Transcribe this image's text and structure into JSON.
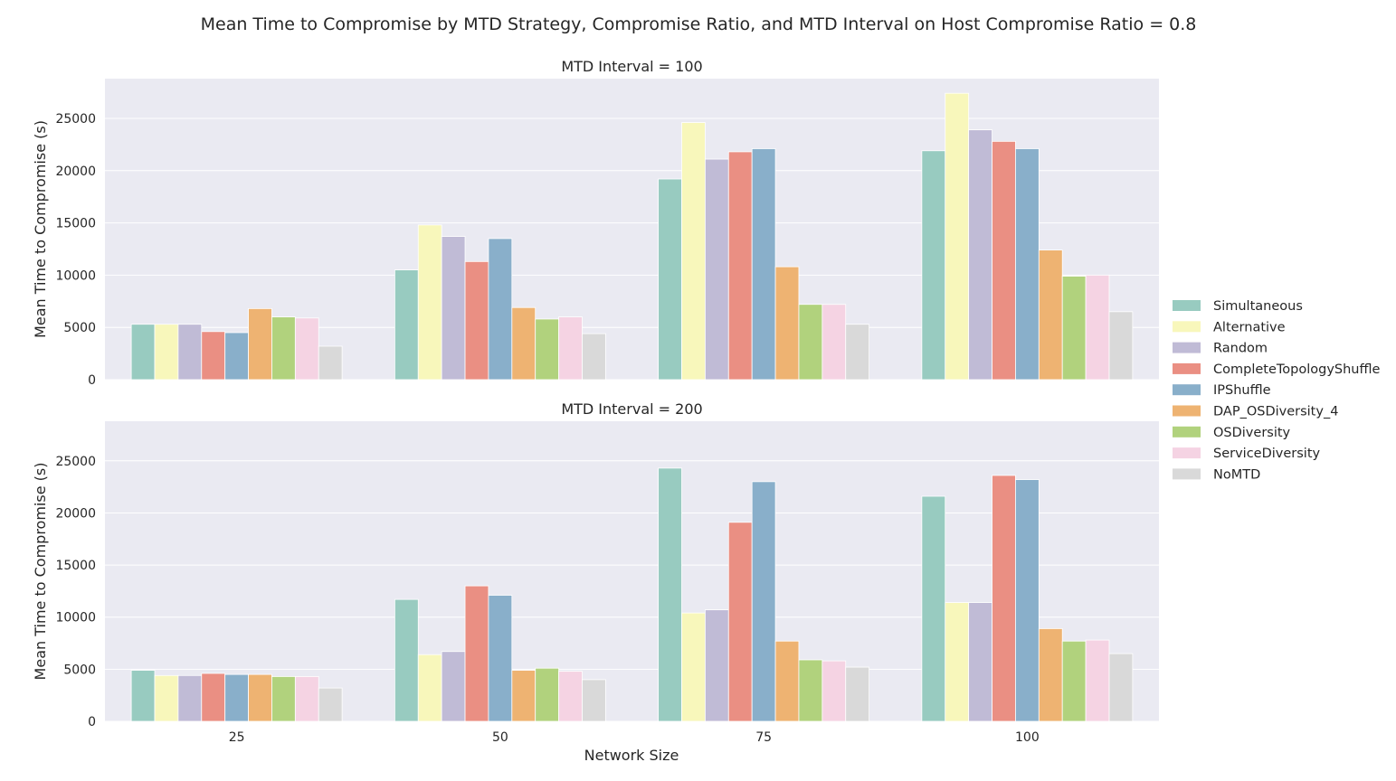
{
  "figure": {
    "title": "Mean Time to Compromise by MTD Strategy, Compromise Ratio, and MTD Interval on Host Compromise Ratio = 0.8",
    "xlabel": "Network Size"
  },
  "chart_data": [
    {
      "type": "bar",
      "title": "MTD Interval = 100",
      "ylabel": "Mean Time to Compromise (s)",
      "ylim": [
        0,
        28800
      ],
      "yticks": [
        0,
        5000,
        10000,
        15000,
        20000,
        25000
      ],
      "categories": [
        "25",
        "50",
        "75",
        "100"
      ],
      "grid": true,
      "legend": "right",
      "series": [
        {
          "name": "Simultaneous",
          "color": "#98cbc0",
          "values": [
            5300,
            10500,
            19200,
            21900
          ]
        },
        {
          "name": "Alternative",
          "color": "#f8f7bb",
          "values": [
            5300,
            14800,
            24600,
            27400
          ]
        },
        {
          "name": "Random",
          "color": "#c0bbd6",
          "values": [
            5300,
            13700,
            21100,
            23900
          ]
        },
        {
          "name": "CompleteTopologyShuffle",
          "color": "#ea8f83",
          "values": [
            4600,
            11300,
            21800,
            22800
          ]
        },
        {
          "name": "IPShuffle",
          "color": "#89afca",
          "values": [
            4500,
            13500,
            22100,
            22100
          ]
        },
        {
          "name": "DAP_OSDiversity_4",
          "color": "#eeb372",
          "values": [
            6800,
            6900,
            10800,
            12400
          ]
        },
        {
          "name": "OSDiversity",
          "color": "#b1d27d",
          "values": [
            6000,
            5800,
            7200,
            9900
          ]
        },
        {
          "name": "ServiceDiversity",
          "color": "#f5d3e3",
          "values": [
            5900,
            6000,
            7200,
            10000
          ]
        },
        {
          "name": "NoMTD",
          "color": "#d9d9d9",
          "values": [
            3200,
            4400,
            5300,
            6500
          ]
        }
      ]
    },
    {
      "type": "bar",
      "title": "MTD Interval = 200",
      "ylabel": "Mean Time to Compromise (s)",
      "ylim": [
        0,
        28800
      ],
      "yticks": [
        0,
        5000,
        10000,
        15000,
        20000,
        25000
      ],
      "categories": [
        "25",
        "50",
        "75",
        "100"
      ],
      "grid": true,
      "legend": "right",
      "series": [
        {
          "name": "Simultaneous",
          "color": "#98cbc0",
          "values": [
            4900,
            11700,
            24300,
            21600
          ]
        },
        {
          "name": "Alternative",
          "color": "#f8f7bb",
          "values": [
            4400,
            6400,
            10400,
            11400
          ]
        },
        {
          "name": "Random",
          "color": "#c0bbd6",
          "values": [
            4400,
            6700,
            10700,
            11400
          ]
        },
        {
          "name": "CompleteTopologyShuffle",
          "color": "#ea8f83",
          "values": [
            4600,
            13000,
            19100,
            23600
          ]
        },
        {
          "name": "IPShuffle",
          "color": "#89afca",
          "values": [
            4500,
            12100,
            23000,
            23200
          ]
        },
        {
          "name": "DAP_OSDiversity_4",
          "color": "#eeb372",
          "values": [
            4500,
            4900,
            7700,
            8900
          ]
        },
        {
          "name": "OSDiversity",
          "color": "#b1d27d",
          "values": [
            4300,
            5100,
            5900,
            7700
          ]
        },
        {
          "name": "ServiceDiversity",
          "color": "#f5d3e3",
          "values": [
            4300,
            4800,
            5800,
            7800
          ]
        },
        {
          "name": "NoMTD",
          "color": "#d9d9d9",
          "values": [
            3200,
            4000,
            5200,
            6500
          ]
        }
      ]
    }
  ]
}
